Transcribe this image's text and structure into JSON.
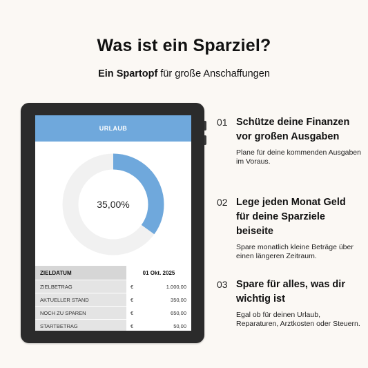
{
  "page": {
    "title": "Was ist ein Sparziel?",
    "subtitle_bold": "Ein Spartopf",
    "subtitle_rest": " für große Anschaffungen"
  },
  "card": {
    "header": "URLAUB",
    "progress_label": "35,00%",
    "progress_fraction": 0.35,
    "accent_color": "#6fa8dc",
    "track_color": "#f1f1f1",
    "target_date_label": "ZIELDATUM",
    "target_date_value": "01 Okt. 2025",
    "rows": [
      {
        "label": "ZIELBETRAG",
        "currency": "€",
        "value": "1.000,00"
      },
      {
        "label": "AKTUELLER STAND",
        "currency": "€",
        "value": "350,00"
      },
      {
        "label": "NOCH ZU SPAREN",
        "currency": "€",
        "value": "650,00"
      },
      {
        "label": "STARTBETRAG",
        "currency": "€",
        "value": "50,00"
      }
    ]
  },
  "points": [
    {
      "num": "01",
      "title": "Schütze deine Finanzen vor großen Ausgaben",
      "desc": "Plane für deine kommenden Ausgaben im Voraus."
    },
    {
      "num": "02",
      "title": "Lege jeden Monat Geld für deine Sparziele beiseite",
      "desc": "Spare monatlich kleine Beträge über einen längeren Zeitraum."
    },
    {
      "num": "03",
      "title": "Spare für alles, was dir wichtig ist",
      "desc": "Egal ob für deinen Urlaub, Reparaturen, Arztkosten oder Steuern."
    }
  ]
}
